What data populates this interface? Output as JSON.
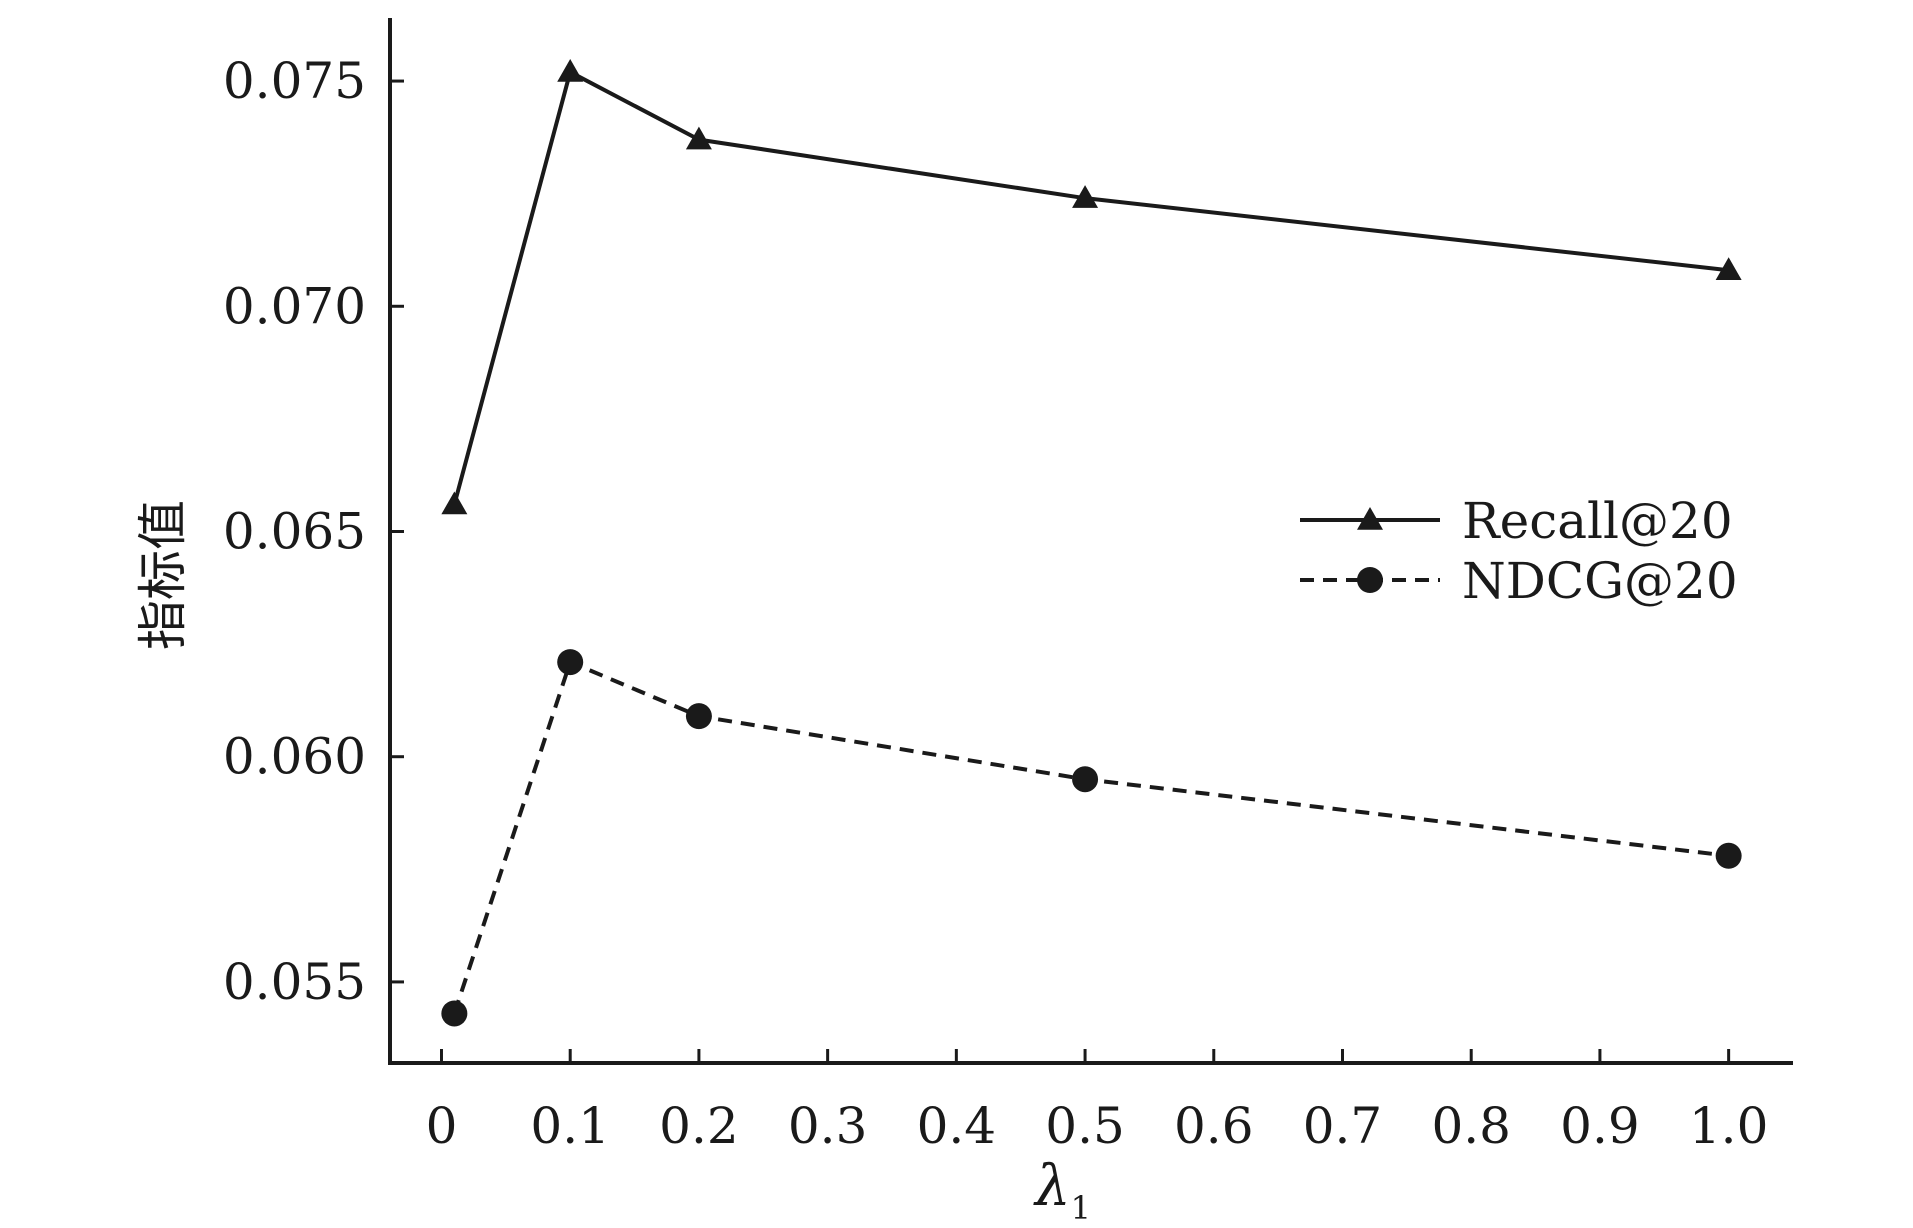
{
  "chart_data": {
    "type": "line",
    "title": "",
    "xlabel": "λ",
    "xlabel_subscript": "1",
    "ylabel": "指标值",
    "x": [
      0.01,
      0.1,
      0.2,
      0.5,
      1.0
    ],
    "xlim": [
      -0.04,
      1.05
    ],
    "ylim": [
      0.0532,
      0.0764
    ],
    "x_ticks": [
      0,
      0.1,
      0.2,
      0.3,
      0.4,
      0.5,
      0.6,
      0.7,
      0.8,
      0.9,
      1.0
    ],
    "x_tick_labels": [
      "0",
      "0.1",
      "0.2",
      "0.3",
      "0.4",
      "0.5",
      "0.6",
      "0.7",
      "0.8",
      "0.9",
      "1.0"
    ],
    "y_ticks": [
      0.055,
      0.06,
      0.065,
      0.07,
      0.075
    ],
    "y_tick_labels": [
      "0.055",
      "0.060",
      "0.065",
      "0.070",
      "0.075"
    ],
    "grid": false,
    "legend_position": "center-right",
    "series": [
      {
        "name": "Recall@20",
        "values": [
          0.0656,
          0.0752,
          0.0737,
          0.0724,
          0.0708
        ],
        "line_style": "solid",
        "marker": "triangle",
        "color": "#1a1a1a"
      },
      {
        "name": "NDCG@20",
        "values": [
          0.0543,
          0.0621,
          0.0609,
          0.0595,
          0.0578
        ],
        "line_style": "dashed",
        "marker": "circle",
        "color": "#1a1a1a"
      }
    ]
  }
}
